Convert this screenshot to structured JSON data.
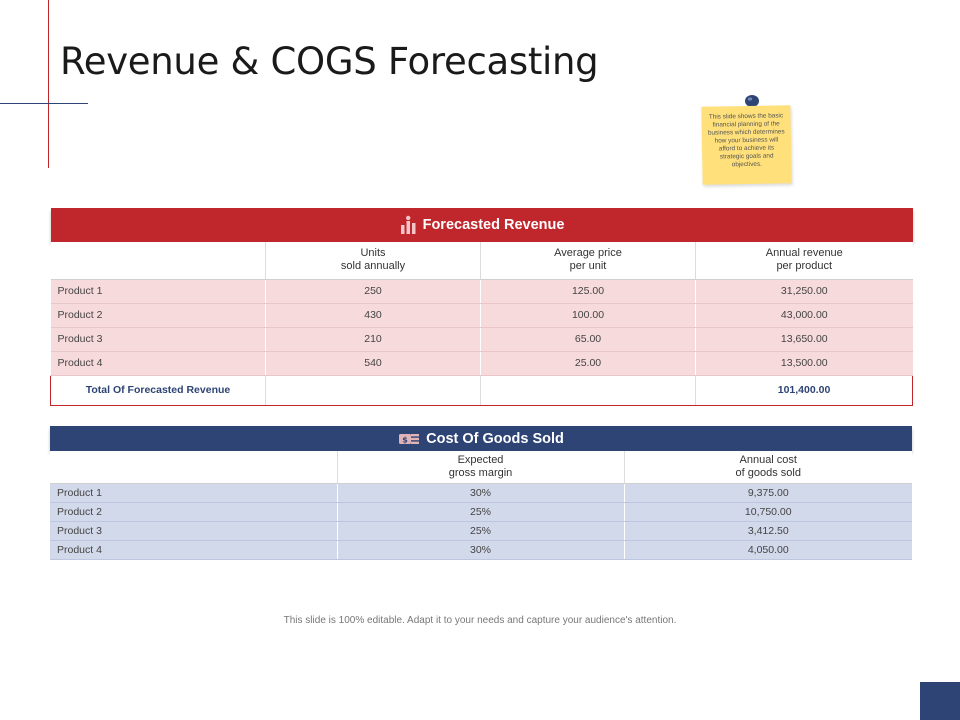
{
  "title": "Revenue & COGS Forecasting",
  "sticky_note": "This slide shows the basic financial planning of the business  which determines how your business will afford to achieve its strategic goals and objectives.",
  "revenue": {
    "heading": "Forecasted Revenue",
    "columns": [
      "",
      "Units\nsold annually",
      "Average price\nper unit",
      "Annual revenue\nper product"
    ],
    "rows": [
      [
        "Product 1",
        "250",
        "125.00",
        "31,250.00"
      ],
      [
        "Product 2",
        "430",
        "100.00",
        "43,000.00"
      ],
      [
        "Product 3",
        "210",
        "65.00",
        "13,650.00"
      ],
      [
        "Product 4",
        "540",
        "25.00",
        "13,500.00"
      ]
    ],
    "total_label": "Total Of Forecasted Revenue",
    "total_value": "101,400.00"
  },
  "cogs": {
    "heading": "Cost Of Goods Sold",
    "columns": [
      "",
      "Expected\ngross margin",
      "Annual cost\nof goods sold"
    ],
    "rows": [
      [
        "Product 1",
        "30%",
        "9,375.00"
      ],
      [
        "Product 2",
        "25%",
        "10,750.00"
      ],
      [
        "Product 3",
        "25%",
        "3,412.50"
      ],
      [
        "Product 4",
        "30%",
        "4,050.00"
      ]
    ]
  },
  "footer": "This slide is 100% editable.  Adapt it to your needs and capture your audience's attention.",
  "colors": {
    "accent_red": "#c0272d",
    "accent_navy": "#2e4475",
    "red_row": "#f7dadc",
    "blue_row": "#d2d9ea",
    "note": "#ffe07a"
  }
}
